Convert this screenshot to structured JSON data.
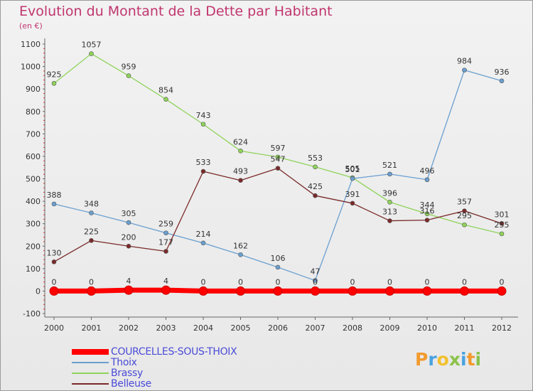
{
  "title": "Evolution du Montant de la Dette par Habitant",
  "unit_label": "(en €)",
  "brand": {
    "letters": [
      "P",
      "r",
      "o",
      "x",
      "i",
      "t",
      "i"
    ],
    "colors": [
      "#f29a2e",
      "#4aa3df",
      "#f2c12e",
      "#8bc34a",
      "#4aa3df",
      "#f29a2e",
      "#8bc34a"
    ]
  },
  "chart_data": {
    "type": "line",
    "x": [
      "2000",
      "2001",
      "2002",
      "2003",
      "2004",
      "2005",
      "2006",
      "2007",
      "2008",
      "2009",
      "2010",
      "2011",
      "2012"
    ],
    "ylim": [
      -100,
      1100
    ],
    "yticks": [
      "-100",
      "0",
      "100",
      "200",
      "300",
      "400",
      "500",
      "600",
      "700",
      "800",
      "900",
      "1000",
      "1100"
    ],
    "grid": false,
    "legend_position": "bottom-left",
    "series": [
      {
        "name": "COURCELLES-SOUS-THOIX",
        "color": "#ff0000",
        "values": [
          0,
          0,
          4,
          4,
          0,
          0,
          0,
          0,
          0,
          0,
          0,
          0,
          0
        ],
        "labels": [
          "0",
          "0",
          "4",
          "4",
          "0",
          "0",
          "0",
          "0",
          "0",
          "0",
          "0",
          "0",
          "0"
        ]
      },
      {
        "name": "Thoix",
        "color": "#6a9fd0",
        "values": [
          388,
          348,
          305,
          259,
          214,
          162,
          106,
          47,
          501,
          521,
          496,
          984,
          936
        ],
        "labels": [
          "388",
          "348",
          "305",
          "259",
          "214",
          "162",
          "106",
          "47",
          "501",
          "521",
          "496",
          "984",
          "936"
        ]
      },
      {
        "name": "Brassy",
        "color": "#8fd35a",
        "values": [
          925,
          1057,
          959,
          854,
          743,
          624,
          597,
          553,
          505,
          396,
          344,
          295,
          255
        ],
        "labels": [
          "925",
          "1057",
          "959",
          "854",
          "743",
          "624",
          "597",
          "553",
          "505",
          "396",
          "344",
          "295",
          "255"
        ]
      },
      {
        "name": "Belleuse",
        "color": "#7a2a2a",
        "values": [
          130,
          225,
          200,
          177,
          533,
          493,
          547,
          425,
          391,
          313,
          316,
          357,
          301
        ],
        "labels": [
          "130",
          "225",
          "200",
          "177",
          "533",
          "493",
          "547",
          "425",
          "391",
          "313",
          "316",
          "357",
          "301"
        ]
      }
    ]
  }
}
